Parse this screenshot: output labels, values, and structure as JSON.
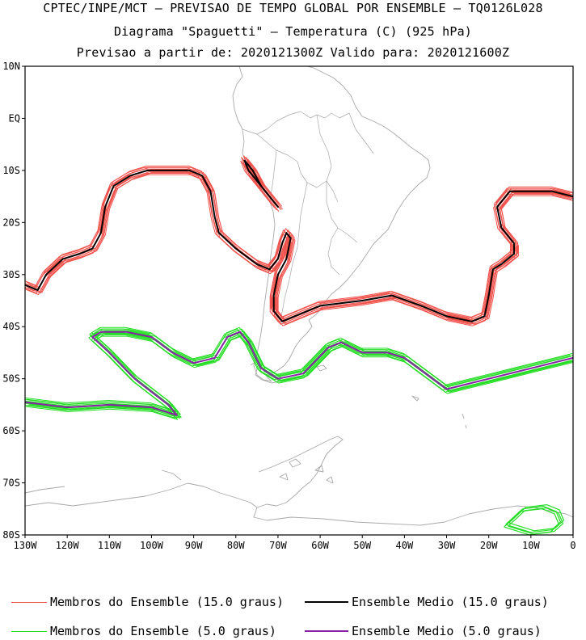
{
  "header": {
    "line1": "CPTEC/INPE/MCT – PREVISAO DE TEMPO GLOBAL POR ENSEMBLE – TQ0126L028",
    "line2": "Diagrama \"Spaguetti\" – Temperatura (C) (925 hPa)",
    "line3": "Previsao a partir de: 2020121300Z  Valido para: 2020121600Z"
  },
  "colors": {
    "member_15": "#f0504a",
    "mean_15": "#000000",
    "member_5": "#22dd22",
    "mean_5": "#8a1fa8",
    "coast": "#a8a8a8"
  },
  "legend": [
    {
      "label": "Membros do Ensemble (15.0 graus)",
      "color": "#f0504a"
    },
    {
      "label": "Ensemble Medio (15.0 graus)",
      "color": "#000000"
    },
    {
      "label": "Membros do Ensemble (5.0 graus)",
      "color": "#22dd22"
    },
    {
      "label": "Ensemble Medio (5.0 graus)",
      "color": "#8a1fa8"
    }
  ],
  "chart_data": {
    "type": "line",
    "title": "Diagrama \"Spaguetti\" – Temperatura (C) (925 hPa)",
    "xlabel": "",
    "ylabel": "",
    "xlim": [
      -130,
      0
    ],
    "ylim": [
      -80,
      10
    ],
    "x_ticks": [
      -130,
      -120,
      -110,
      -100,
      -90,
      -80,
      -70,
      -60,
      -50,
      -40,
      -30,
      -20,
      -10,
      0
    ],
    "x_tick_labels": [
      "130W",
      "120W",
      "110W",
      "100W",
      "90W",
      "80W",
      "70W",
      "60W",
      "50W",
      "40W",
      "30W",
      "20W",
      "10W",
      "0"
    ],
    "y_ticks": [
      10,
      0,
      -10,
      -20,
      -30,
      -40,
      -50,
      -60,
      -70,
      -80
    ],
    "y_tick_labels": [
      "10N",
      "EQ",
      "10S",
      "20S",
      "30S",
      "40S",
      "50S",
      "60S",
      "70S",
      "80S"
    ],
    "series": [
      {
        "name": "Ensemble Medio (15.0 graus)",
        "role": "mean_15",
        "segments": [
          [
            [
              -130,
              -32
            ],
            [
              -127,
              -33
            ],
            [
              -125,
              -30
            ],
            [
              -121,
              -27
            ],
            [
              -117,
              -26
            ],
            [
              -114,
              -25
            ],
            [
              -112,
              -22
            ],
            [
              -111,
              -17
            ],
            [
              -109,
              -13
            ],
            [
              -105,
              -11
            ],
            [
              -101,
              -10
            ],
            [
              -95,
              -10
            ],
            [
              -91,
              -10
            ],
            [
              -88,
              -11
            ],
            [
              -86,
              -14
            ],
            [
              -85,
              -19
            ],
            [
              -84,
              -22
            ],
            [
              -80,
              -25
            ],
            [
              -75,
              -28
            ],
            [
              -72,
              -29
            ],
            [
              -70,
              -27
            ],
            [
              -69,
              -24
            ],
            [
              -68,
              -22
            ],
            [
              -67,
              -23
            ],
            [
              -68,
              -27
            ],
            [
              -70,
              -30
            ],
            [
              -71,
              -34
            ],
            [
              -71,
              -37
            ],
            [
              -69,
              -39
            ],
            [
              -66,
              -38
            ],
            [
              -60,
              -36
            ],
            [
              -50,
              -35
            ],
            [
              -43,
              -34
            ],
            [
              -36,
              -36
            ],
            [
              -30,
              -38
            ],
            [
              -24,
              -39
            ],
            [
              -21,
              -38
            ],
            [
              -20,
              -34
            ],
            [
              -19,
              -29
            ],
            [
              -17,
              -28
            ],
            [
              -14,
              -26
            ],
            [
              -14,
              -24
            ],
            [
              -17,
              -21
            ],
            [
              -18,
              -17
            ],
            [
              -15,
              -14
            ],
            [
              -10,
              -14
            ],
            [
              -5,
              -14
            ],
            [
              0,
              -15
            ]
          ],
          [
            [
              -78,
              -8
            ],
            [
              -77,
              -10
            ],
            [
              -74,
              -13
            ],
            [
              -71,
              -16
            ],
            [
              -70,
              -17
            ],
            [
              -71,
              -16
            ],
            [
              -74,
              -13
            ],
            [
              -76,
              -10
            ],
            [
              -78,
              -8
            ]
          ]
        ]
      },
      {
        "name": "Ensemble Medio (5.0 graus)",
        "role": "mean_5",
        "segments": [
          [
            [
              -130,
              -54.5
            ],
            [
              -120,
              -55.5
            ],
            [
              -110,
              -55
            ],
            [
              -100,
              -55.5
            ],
            [
              -94,
              -57
            ],
            [
              -96,
              -55
            ],
            [
              -104,
              -50
            ],
            [
              -110,
              -45
            ],
            [
              -114,
              -42
            ],
            [
              -112,
              -41
            ],
            [
              -106,
              -41
            ],
            [
              -100,
              -42
            ],
            [
              -95,
              -45
            ],
            [
              -90,
              -47
            ],
            [
              -85,
              -46
            ],
            [
              -82,
              -42
            ],
            [
              -79,
              -41
            ],
            [
              -77,
              -43
            ],
            [
              -74,
              -48
            ],
            [
              -70,
              -50
            ],
            [
              -64,
              -49
            ],
            [
              -58,
              -44
            ],
            [
              -55,
              -43
            ],
            [
              -50,
              -45
            ],
            [
              -44,
              -45
            ],
            [
              -40,
              -46
            ],
            [
              -35,
              -49
            ],
            [
              -30,
              -52
            ],
            [
              -25,
              -51
            ],
            [
              -20,
              -50
            ],
            [
              -10,
              -48
            ],
            [
              0,
              -46
            ]
          ]
        ]
      }
    ]
  }
}
